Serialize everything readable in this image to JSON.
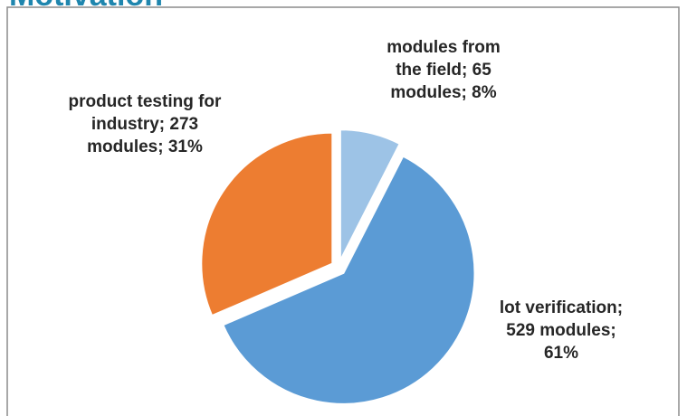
{
  "chart_data": {
    "type": "pie",
    "title": "Motivation",
    "values": [
      65,
      529,
      273
    ],
    "value_labels": [
      "modules from the field; 65 modules; 8%",
      "lot verification; 529 modules; 61%",
      "product testing for industry; 273 modules; 31%"
    ],
    "colors": [
      "#9dc3e6",
      "#5b9bd5",
      "#ed7d31"
    ]
  }
}
